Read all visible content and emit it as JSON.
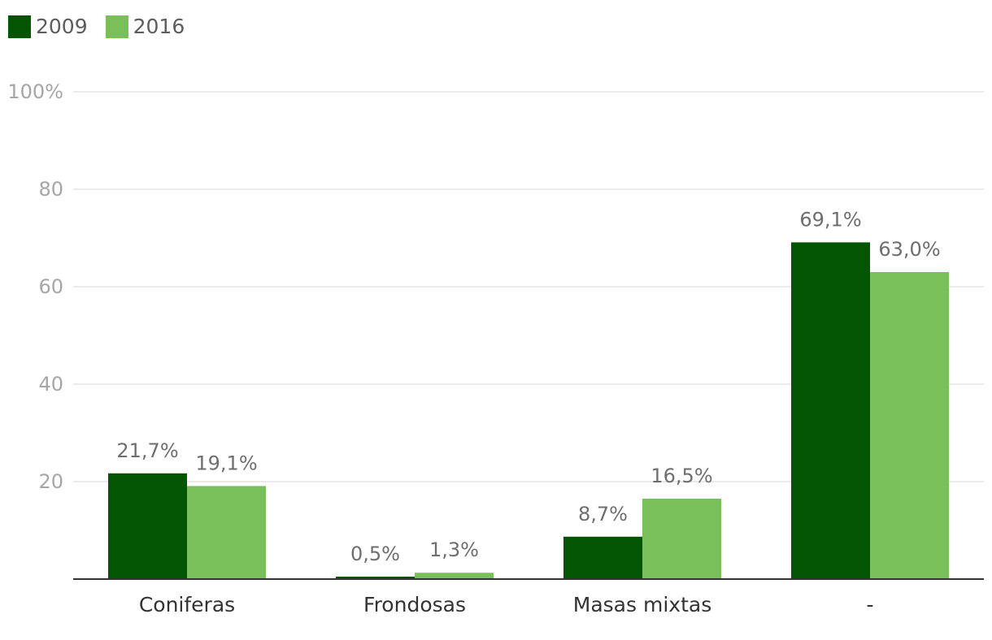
{
  "chart_data": {
    "type": "bar",
    "categories": [
      "Coniferas",
      "Frondosas",
      "Masas mixtas",
      "-"
    ],
    "series": [
      {
        "name": "2009",
        "color": "#035502",
        "values": [
          21.7,
          0.5,
          8.7,
          69.1
        ],
        "labels": [
          "21,7%",
          "0,5%",
          "8,7%",
          "69,1%"
        ]
      },
      {
        "name": "2016",
        "color": "#7ac05a",
        "values": [
          19.1,
          1.3,
          16.5,
          63.0
        ],
        "labels": [
          "19,1%",
          "1,3%",
          "16,5%",
          "63,0%"
        ]
      }
    ],
    "ylim": [
      0,
      100
    ],
    "yticks": [
      20,
      40,
      60,
      80,
      100
    ],
    "ytick_labels": [
      "20",
      "40",
      "60",
      "80",
      "100%"
    ],
    "grid": true,
    "legend_position": "top-left",
    "title": "",
    "xlabel": "",
    "ylabel": ""
  }
}
